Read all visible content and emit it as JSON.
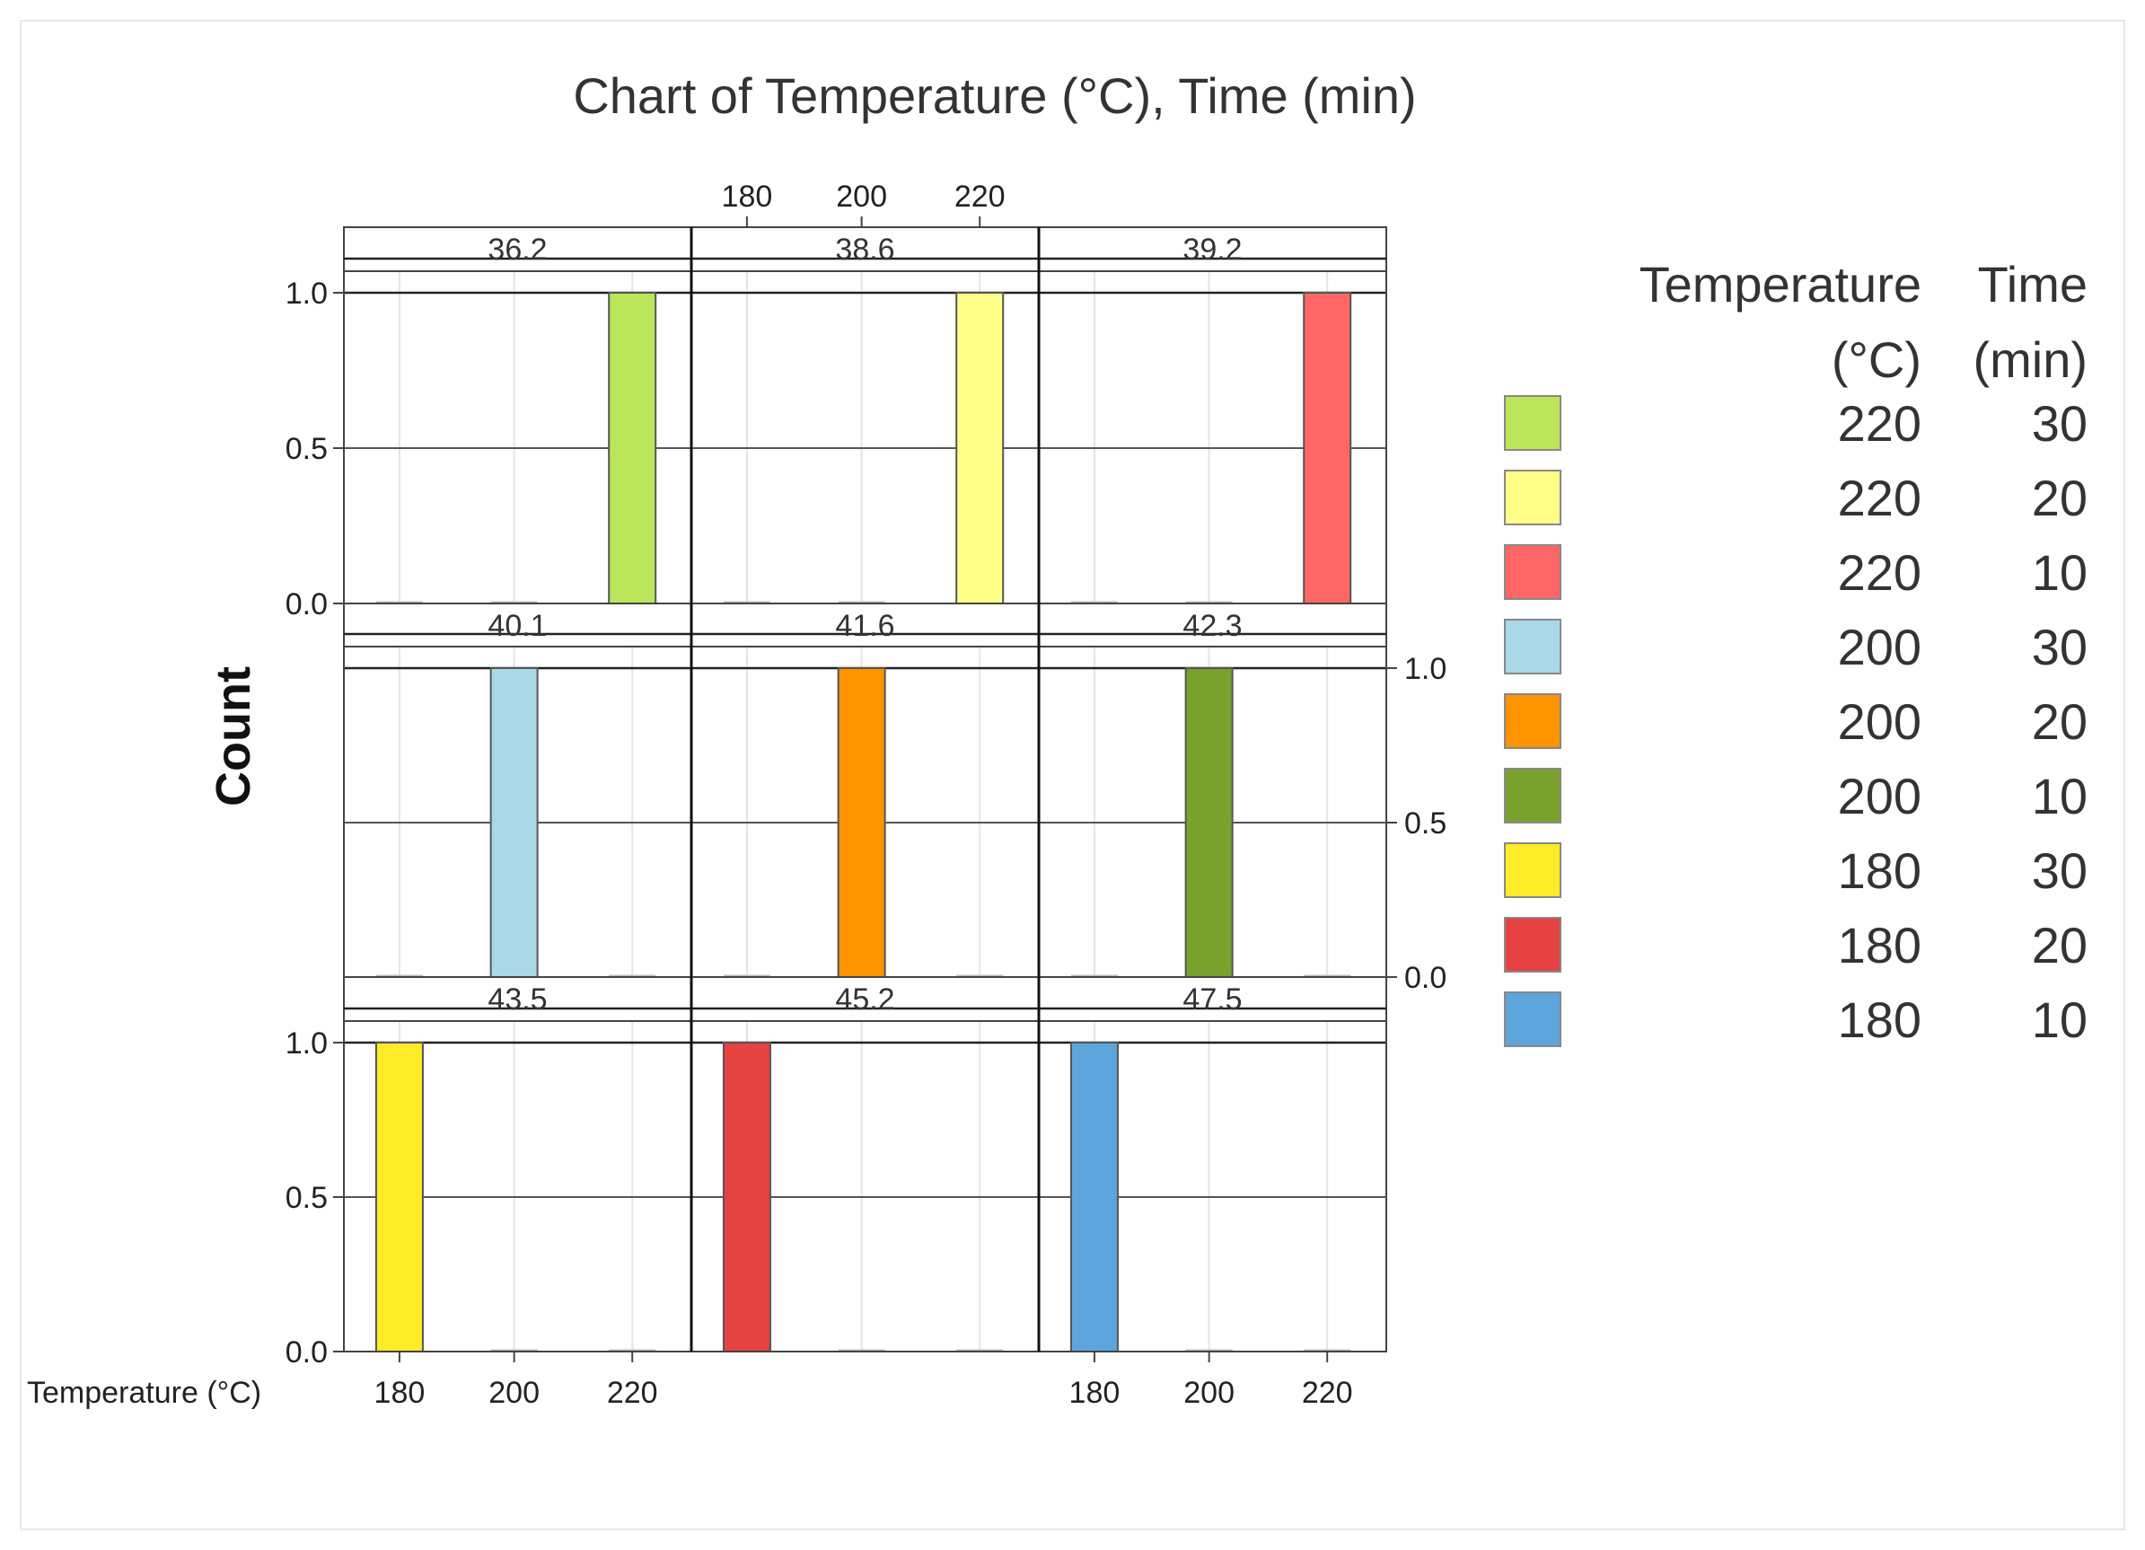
{
  "chart_data": {
    "type": "bar",
    "title": "Chart of Temperature (°C), Time (min)",
    "ylabel": "Count",
    "xlabel": "Temperature (°C)",
    "x_categories": [
      "180",
      "200",
      "220"
    ],
    "y_ticks": [
      "0.0",
      "0.5",
      "1.0"
    ],
    "ylim": [
      0,
      1
    ],
    "panels": [
      {
        "label": "36.2",
        "temperature": "220",
        "time": "30",
        "values": [
          0,
          0,
          1
        ],
        "color": "#bce65a"
      },
      {
        "label": "38.6",
        "temperature": "220",
        "time": "20",
        "values": [
          0,
          0,
          1
        ],
        "color": "#ffff88"
      },
      {
        "label": "39.2",
        "temperature": "220",
        "time": "10",
        "values": [
          0,
          0,
          1
        ],
        "color": "#ff6666"
      },
      {
        "label": "40.1",
        "temperature": "200",
        "time": "30",
        "values": [
          0,
          1,
          0
        ],
        "color": "#aad8e6"
      },
      {
        "label": "41.6",
        "temperature": "200",
        "time": "20",
        "values": [
          0,
          1,
          0
        ],
        "color": "#ff9300"
      },
      {
        "label": "42.3",
        "temperature": "200",
        "time": "10",
        "values": [
          0,
          1,
          0
        ],
        "color": "#78a22c"
      },
      {
        "label": "43.5",
        "temperature": "180",
        "time": "30",
        "values": [
          1,
          0,
          0
        ],
        "color": "#ffeb28"
      },
      {
        "label": "45.2",
        "temperature": "180",
        "time": "20",
        "values": [
          1,
          0,
          0
        ],
        "color": "#e64242"
      },
      {
        "label": "47.5",
        "temperature": "180",
        "time": "10",
        "values": [
          1,
          0,
          0
        ],
        "color": "#5ea5dc"
      }
    ],
    "legend": {
      "header_col1": [
        "Temperature",
        "(°C)"
      ],
      "header_col2": [
        "Time",
        "(min)"
      ],
      "entries": [
        {
          "temperature": "220",
          "time": "30",
          "color": "#bce65a"
        },
        {
          "temperature": "220",
          "time": "20",
          "color": "#ffff88"
        },
        {
          "temperature": "220",
          "time": "10",
          "color": "#ff6666"
        },
        {
          "temperature": "200",
          "time": "30",
          "color": "#aad8e6"
        },
        {
          "temperature": "200",
          "time": "20",
          "color": "#ff9300"
        },
        {
          "temperature": "200",
          "time": "10",
          "color": "#78a22c"
        },
        {
          "temperature": "180",
          "time": "30",
          "color": "#ffeb28"
        },
        {
          "temperature": "180",
          "time": "20",
          "color": "#e64242"
        },
        {
          "temperature": "180",
          "time": "10",
          "color": "#5ea5dc"
        }
      ]
    }
  }
}
